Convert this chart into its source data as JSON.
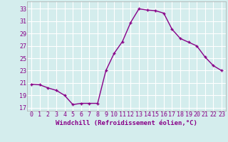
{
  "x": [
    0,
    1,
    2,
    3,
    4,
    5,
    6,
    7,
    8,
    9,
    10,
    11,
    12,
    13,
    14,
    15,
    16,
    17,
    18,
    19,
    20,
    21,
    22,
    23
  ],
  "y": [
    20.8,
    20.7,
    20.2,
    19.8,
    19.0,
    17.5,
    17.7,
    17.7,
    17.7,
    23.0,
    25.8,
    27.7,
    30.8,
    33.0,
    32.8,
    32.7,
    32.3,
    29.7,
    28.2,
    27.6,
    27.0,
    25.2,
    23.8,
    23.0
  ],
  "line_color": "#880088",
  "marker": "+",
  "marker_size": 3,
  "linewidth": 1.0,
  "markeredgewidth": 1.0,
  "xlabel": "Windchill (Refroidissement éolien,°C)",
  "ylabel": "",
  "title": "",
  "xlim": [
    -0.5,
    23.5
  ],
  "ylim": [
    16.5,
    34.2
  ],
  "yticks": [
    17,
    19,
    21,
    23,
    25,
    27,
    29,
    31,
    33
  ],
  "xticks": [
    0,
    1,
    2,
    3,
    4,
    5,
    6,
    7,
    8,
    9,
    10,
    11,
    12,
    13,
    14,
    15,
    16,
    17,
    18,
    19,
    20,
    21,
    22,
    23
  ],
  "background_color": "#d4eded",
  "grid_color": "#b8d8d8",
  "tick_color": "#880088",
  "label_color": "#880088",
  "xlabel_fontsize": 6.5,
  "tick_fontsize": 6.0
}
